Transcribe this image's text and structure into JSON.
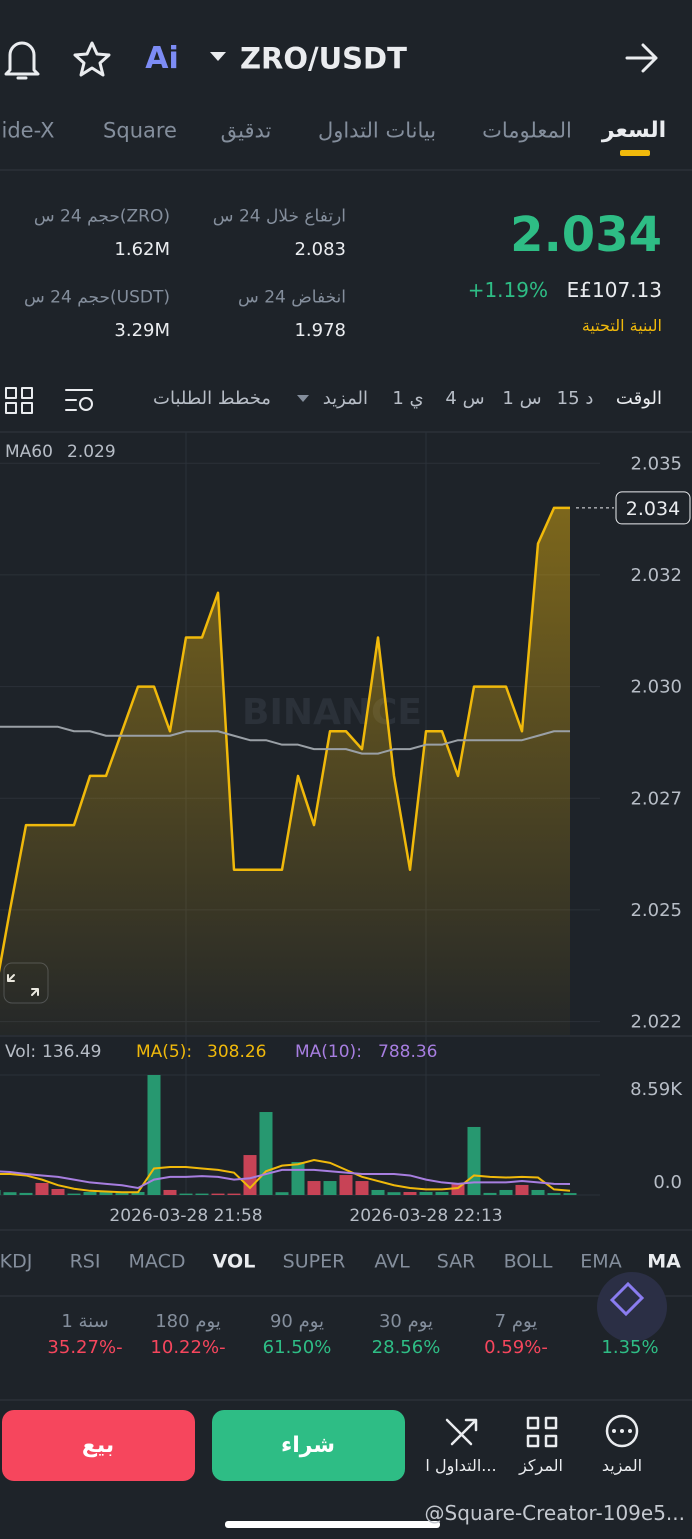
{
  "header": {
    "ai": "Ai",
    "pair": "ZRO/USDT"
  },
  "tabs": [
    "السعر",
    "المعلومات",
    "بيانات التداول",
    "تدقيق",
    "Square",
    "ide-X"
  ],
  "ticker": {
    "price": "2.034",
    "change": "+1.19%",
    "fiat": "E£107.13",
    "tag": "البنية التحتية",
    "stats": [
      {
        "label": "ارتفاع خلال 24 س",
        "value": "2.083"
      },
      {
        "label": "حجم 24 س(ZRO)",
        "value": "1.62M"
      },
      {
        "label": "انخفاض 24 س",
        "value": "1.978"
      },
      {
        "label": "حجم 24 س(USDT)",
        "value": "3.29M"
      }
    ]
  },
  "intervals": [
    "الوقت",
    "15 د",
    "1 س",
    "4 س",
    "1 ي",
    "المزيد",
    "مخطط الطلبات"
  ],
  "chart_data": {
    "type": "line",
    "watermark": "BINANCE",
    "categories": [
      null,
      null,
      null,
      null,
      null,
      null,
      null,
      null,
      null,
      null,
      null,
      null,
      "2026-03-28 21:58",
      null,
      null,
      null,
      null,
      null,
      null,
      null,
      null,
      null,
      null,
      null,
      null,
      null,
      null,
      "2026-03-28 22:13",
      null,
      null,
      null,
      null,
      null,
      null,
      null,
      null,
      null
    ],
    "series": [
      {
        "color": "#f0b90b",
        "values": [
          2.023,
          2.025,
          2.0269,
          2.0269,
          2.0269,
          2.0269,
          2.028,
          2.028,
          2.029,
          2.03,
          2.03,
          2.029,
          2.0311,
          2.0311,
          2.0321,
          2.0259,
          2.0259,
          2.0259,
          2.0259,
          2.028,
          2.0269,
          2.029,
          2.029,
          2.0286,
          2.0311,
          2.028,
          2.0259,
          2.029,
          2.029,
          2.028,
          2.03,
          2.03,
          2.03,
          2.029,
          2.0332,
          2.034,
          2.034
        ]
      },
      {
        "name": "MA60",
        "color": "#9aa0a6",
        "values": [
          2.0291,
          2.0291,
          2.0291,
          2.0291,
          2.0291,
          2.029,
          2.029,
          2.0289,
          2.0289,
          2.0289,
          2.0289,
          2.0289,
          2.029,
          2.029,
          2.029,
          2.0289,
          2.0288,
          2.0288,
          2.0287,
          2.0287,
          2.0286,
          2.0286,
          2.0286,
          2.0285,
          2.0285,
          2.0286,
          2.0286,
          2.0287,
          2.0287,
          2.0288,
          2.0288,
          2.0288,
          2.0288,
          2.0288,
          2.0289,
          2.029,
          2.029
        ]
      }
    ],
    "ylim": [
      2.0222,
      2.0357
    ],
    "yticks": [
      2.035,
      {
        "value": 2.0325,
        "label": "2.032"
      },
      {
        "value": 2.03,
        "label": "2.030"
      },
      {
        "value": 2.0275,
        "label": "2.027"
      },
      2.025,
      {
        "value": 2.0225,
        "label": "2.022"
      }
    ],
    "grid": true,
    "volume": {
      "type": "bar",
      "ylim": [
        0,
        8590
      ],
      "yticks": [
        {
          "value": 8590,
          "label": "8.59K"
        },
        {
          "value": 0,
          "label": "0.0"
        }
      ],
      "series": [
        {
          "name": "Vol:",
          "color": "#b7bdc6",
          "colors": [
            "#279870",
            "#279870",
            "#279870",
            "#c84356",
            "#c84356",
            "#279870",
            "#279870",
            "#279870",
            "#279870",
            "#279870",
            "#279870",
            "#c84356",
            "#279870",
            "#279870",
            "#c84356",
            "#c84356",
            "#c84356",
            "#279870",
            "#279870",
            "#279870",
            "#c84356",
            "#279870",
            "#c84356",
            "#c84356",
            "#279870",
            "#279870",
            "#c84356",
            "#279870",
            "#279870",
            "#c84356",
            "#279870",
            "#279870",
            "#279870",
            "#c84356",
            "#279870",
            "#279870",
            "#279870"
          ],
          "values": [
            360,
            200,
            150,
            860,
            430,
            100,
            215,
            215,
            140,
            215,
            8590,
            360,
            100,
            100,
            100,
            100,
            2860,
            5940,
            200,
            2360,
            1000,
            1000,
            1430,
            1000,
            360,
            200,
            215,
            215,
            215,
            860,
            4870,
            150,
            360,
            720,
            360,
            136,
            136.49
          ]
        },
        {
          "name": "MA(5):",
          "color": "#f0b90b",
          "values": [
            1500,
            1500,
            1400,
            1100,
            700,
            450,
            300,
            250,
            200,
            200,
            1900,
            2000,
            2000,
            1900,
            1800,
            1600,
            500,
            1700,
            2100,
            2200,
            2500,
            2300,
            1800,
            1300,
            1000,
            700,
            500,
            400,
            400,
            500,
            1400,
            1300,
            1250,
            1300,
            1250,
            400,
            308.26
          ]
        },
        {
          "name": "MA(10):",
          "color": "#a77ee0",
          "values": [
            1700,
            1650,
            1500,
            1400,
            1300,
            1100,
            900,
            800,
            700,
            500,
            1100,
            1300,
            1300,
            1350,
            1300,
            1100,
            1200,
            1500,
            1800,
            1800,
            1800,
            1700,
            1600,
            1500,
            1500,
            1500,
            1400,
            1100,
            900,
            800,
            900,
            900,
            900,
            1000,
            900,
            800,
            788.36
          ]
        }
      ]
    }
  },
  "indicators": [
    "MA",
    "EMA",
    "BOLL",
    "SAR",
    "AVL",
    "SUPER",
    "VOL",
    "MACD",
    "RSI",
    "KDJ"
  ],
  "performance": [
    {
      "value": "1.35%"
    },
    {
      "label": "7 يوم",
      "value": "0.59%-"
    },
    {
      "label": "30 يوم",
      "value": "28.56%"
    },
    {
      "label": "90 يوم",
      "value": "61.50%"
    },
    {
      "label": "180 يوم",
      "value": "10.22%-"
    },
    {
      "label": "1 سنة",
      "value": "35.27%-"
    }
  ],
  "actions": {
    "sell": "بيع",
    "buy": "شراء",
    "tools": [
      "التداول ا...",
      "المركز",
      "المزيد"
    ]
  },
  "footer": "@Square-Creator-109e5..."
}
